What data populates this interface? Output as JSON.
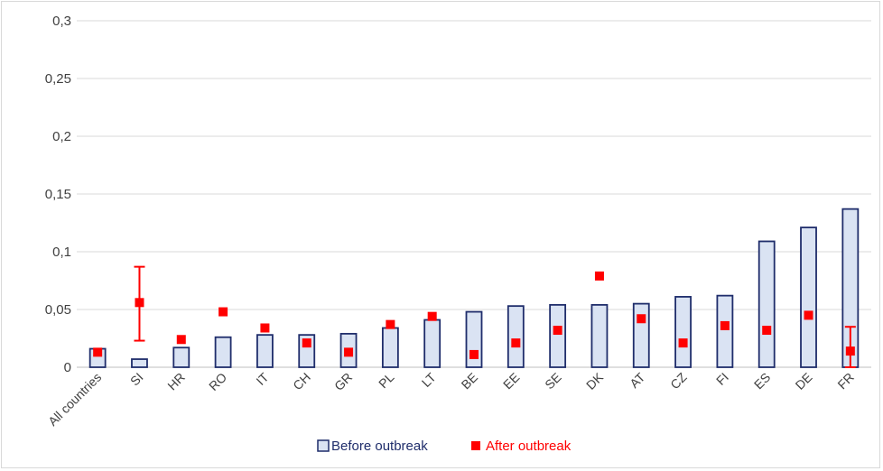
{
  "chart_data": {
    "type": "bar",
    "categories": [
      "All countries",
      "SI",
      "HR",
      "RO",
      "IT",
      "CH",
      "GR",
      "PL",
      "LT",
      "BE",
      "EE",
      "SE",
      "DK",
      "AT",
      "CZ",
      "FI",
      "ES",
      "DE",
      "FR"
    ],
    "series": [
      {
        "name": "Before outbreak",
        "type": "bar",
        "values": [
          0.016,
          0.007,
          0.017,
          0.026,
          0.028,
          0.028,
          0.029,
          0.034,
          0.041,
          0.048,
          0.053,
          0.054,
          0.054,
          0.055,
          0.061,
          0.062,
          0.109,
          0.121,
          0.137
        ],
        "fill": "#dae3f3",
        "stroke": "#1f2d6b"
      },
      {
        "name": "After outbreak",
        "type": "scatter",
        "values": [
          0.013,
          0.056,
          0.024,
          0.048,
          0.034,
          0.021,
          0.013,
          0.037,
          0.044,
          0.011,
          0.021,
          0.032,
          0.079,
          0.042,
          0.021,
          0.036,
          0.032,
          0.045,
          0.014
        ],
        "error_bars": {
          "SI": [
            0.023,
            0.087
          ],
          "FR": [
            0,
            0.035
          ]
        },
        "color": "#ff0000"
      }
    ],
    "ylim": [
      0,
      0.3
    ],
    "yticks": [
      0,
      0.05,
      0.1,
      0.15,
      0.2,
      0.25,
      0.3
    ],
    "ytick_labels": [
      "0",
      "0,05",
      "0,1",
      "0,15",
      "0,2",
      "0,25",
      "0,3"
    ],
    "grid": true,
    "legend_position": "bottom"
  },
  "legend": {
    "before_label": "Before outbreak",
    "after_label": "After outbreak"
  }
}
